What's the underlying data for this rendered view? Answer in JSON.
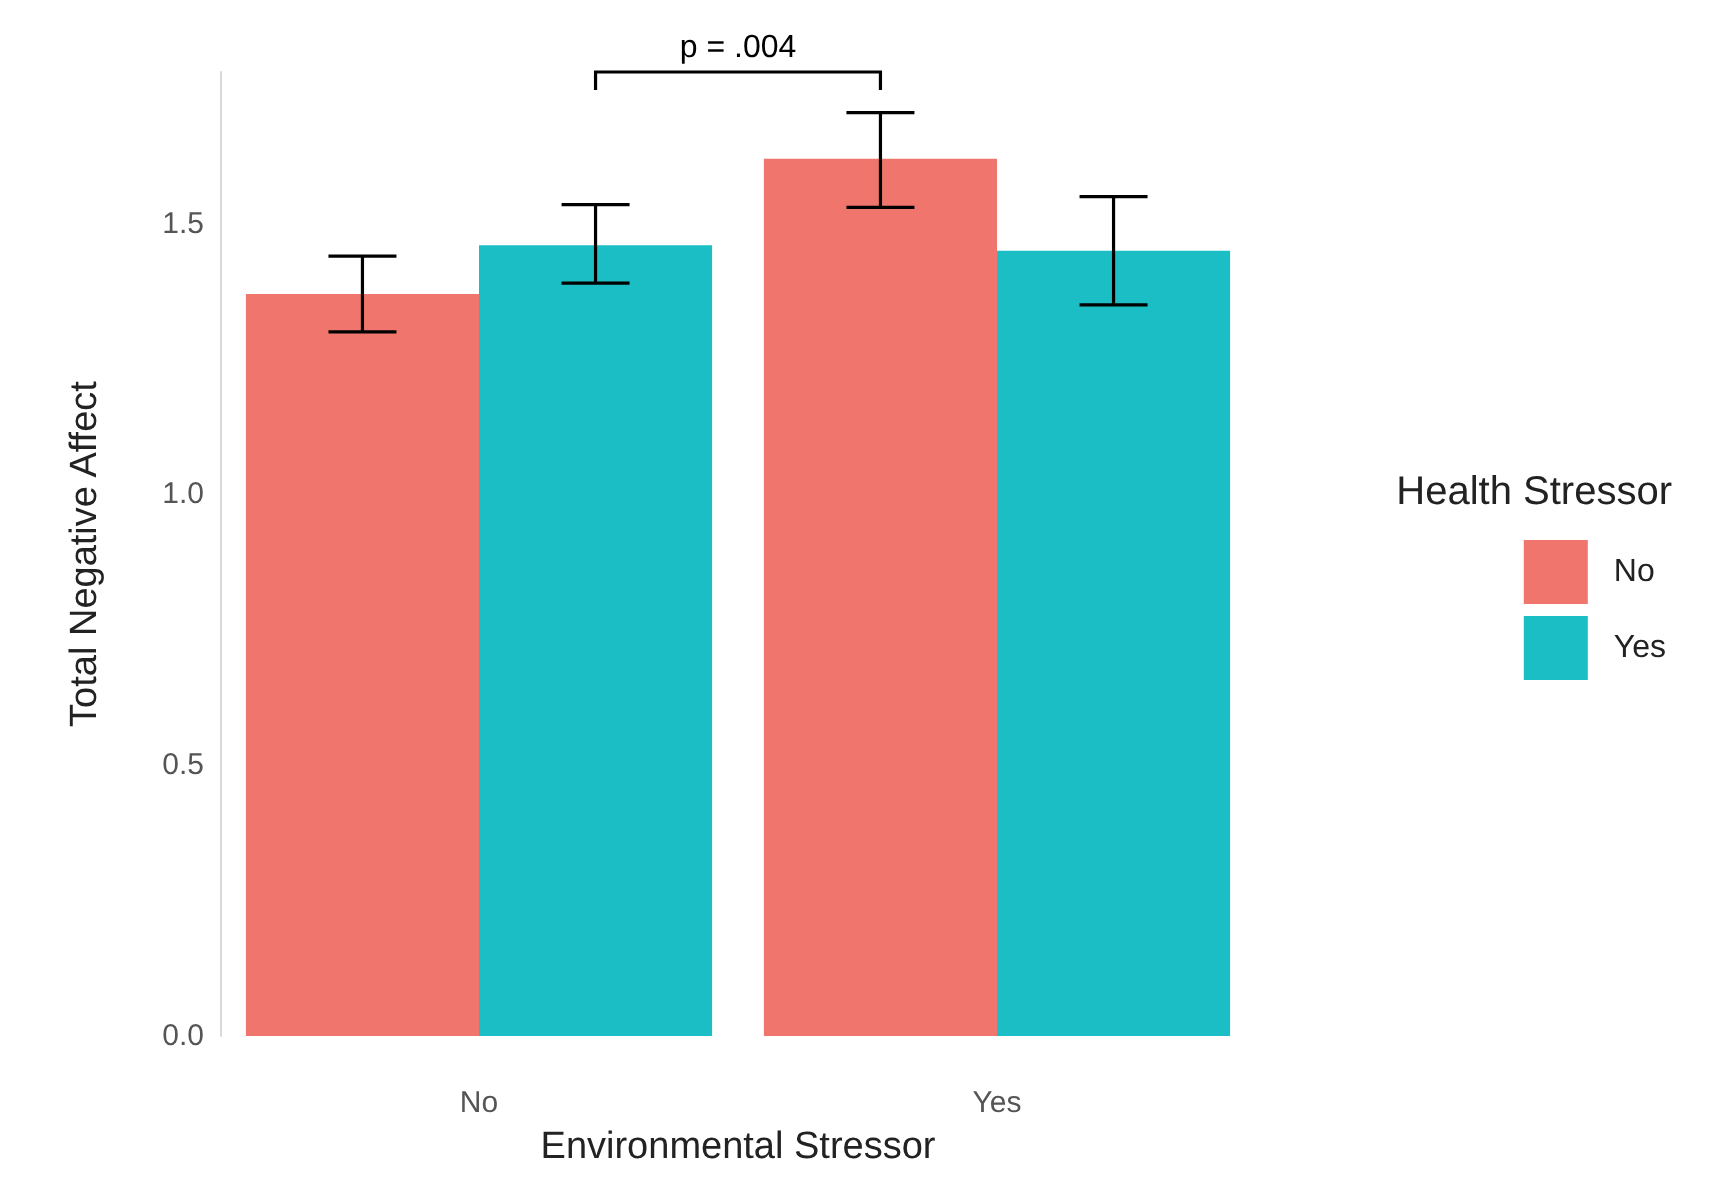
{
  "chart_data": {
    "type": "bar",
    "xlabel": "Environmental Stressor",
    "ylabel": "Total Negative Affect",
    "legend_title": "Health Stressor",
    "categories": [
      "No",
      "Yes"
    ],
    "series": [
      {
        "name": "No",
        "color": "#f0766d",
        "values": [
          1.37,
          1.62
        ],
        "errors": [
          [
            1.3,
            1.44
          ],
          [
            1.53,
            1.705
          ]
        ]
      },
      {
        "name": "Yes",
        "color": "#1abec4",
        "values": [
          1.46,
          1.45
        ],
        "errors": [
          [
            1.39,
            1.535
          ],
          [
            1.35,
            1.55
          ]
        ]
      }
    ],
    "ylim": [
      0,
      1.78
    ],
    "yticks": [
      {
        "value": 0,
        "label": "0.0"
      },
      {
        "value": 0.5,
        "label": "0.5"
      },
      {
        "value": 1,
        "label": "1.0"
      },
      {
        "value": 1.5,
        "label": "1.5"
      }
    ],
    "grid": false,
    "legend": "right",
    "annotations": [
      "p = .004"
    ]
  }
}
